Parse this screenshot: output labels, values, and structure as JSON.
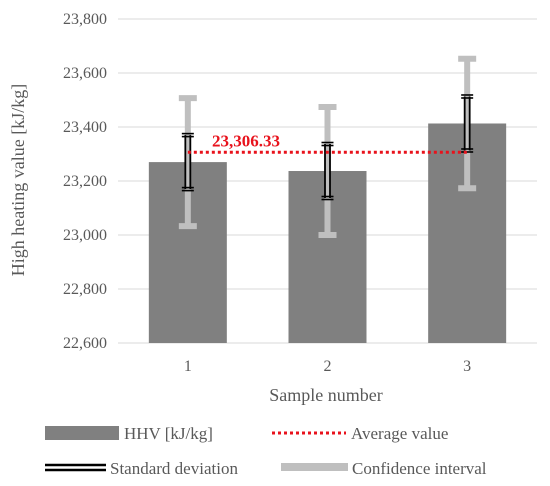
{
  "chart_data": {
    "type": "bar",
    "xlabel": "Sample number",
    "ylabel": "High heating value [kJ/kg]",
    "categories": [
      "1",
      "2",
      "3"
    ],
    "ylim": [
      22600,
      23800
    ],
    "yticks": [
      22600,
      22800,
      23000,
      23200,
      23400,
      23600,
      23800
    ],
    "ytick_labels": [
      "22,600",
      "22,800",
      "23,000",
      "23,200",
      "23,400",
      "23,600",
      "23,800"
    ],
    "grid": true,
    "series": [
      {
        "name": "HHV [kJ/kg]",
        "values": [
          23270,
          23237,
          23413
        ],
        "color": "#808080"
      }
    ],
    "standard_deviation": {
      "name": "Standard deviation",
      "values": [
        100,
        100,
        100
      ],
      "color": "#000000"
    },
    "confidence_interval": {
      "name": "Confidence interval",
      "values": [
        237,
        237,
        240
      ],
      "color": "#bfbfbf"
    },
    "average": {
      "name": "Average value",
      "value": 23306.33,
      "label": "23,306.33",
      "color": "#e8121c"
    },
    "legend_position": "bottom"
  }
}
